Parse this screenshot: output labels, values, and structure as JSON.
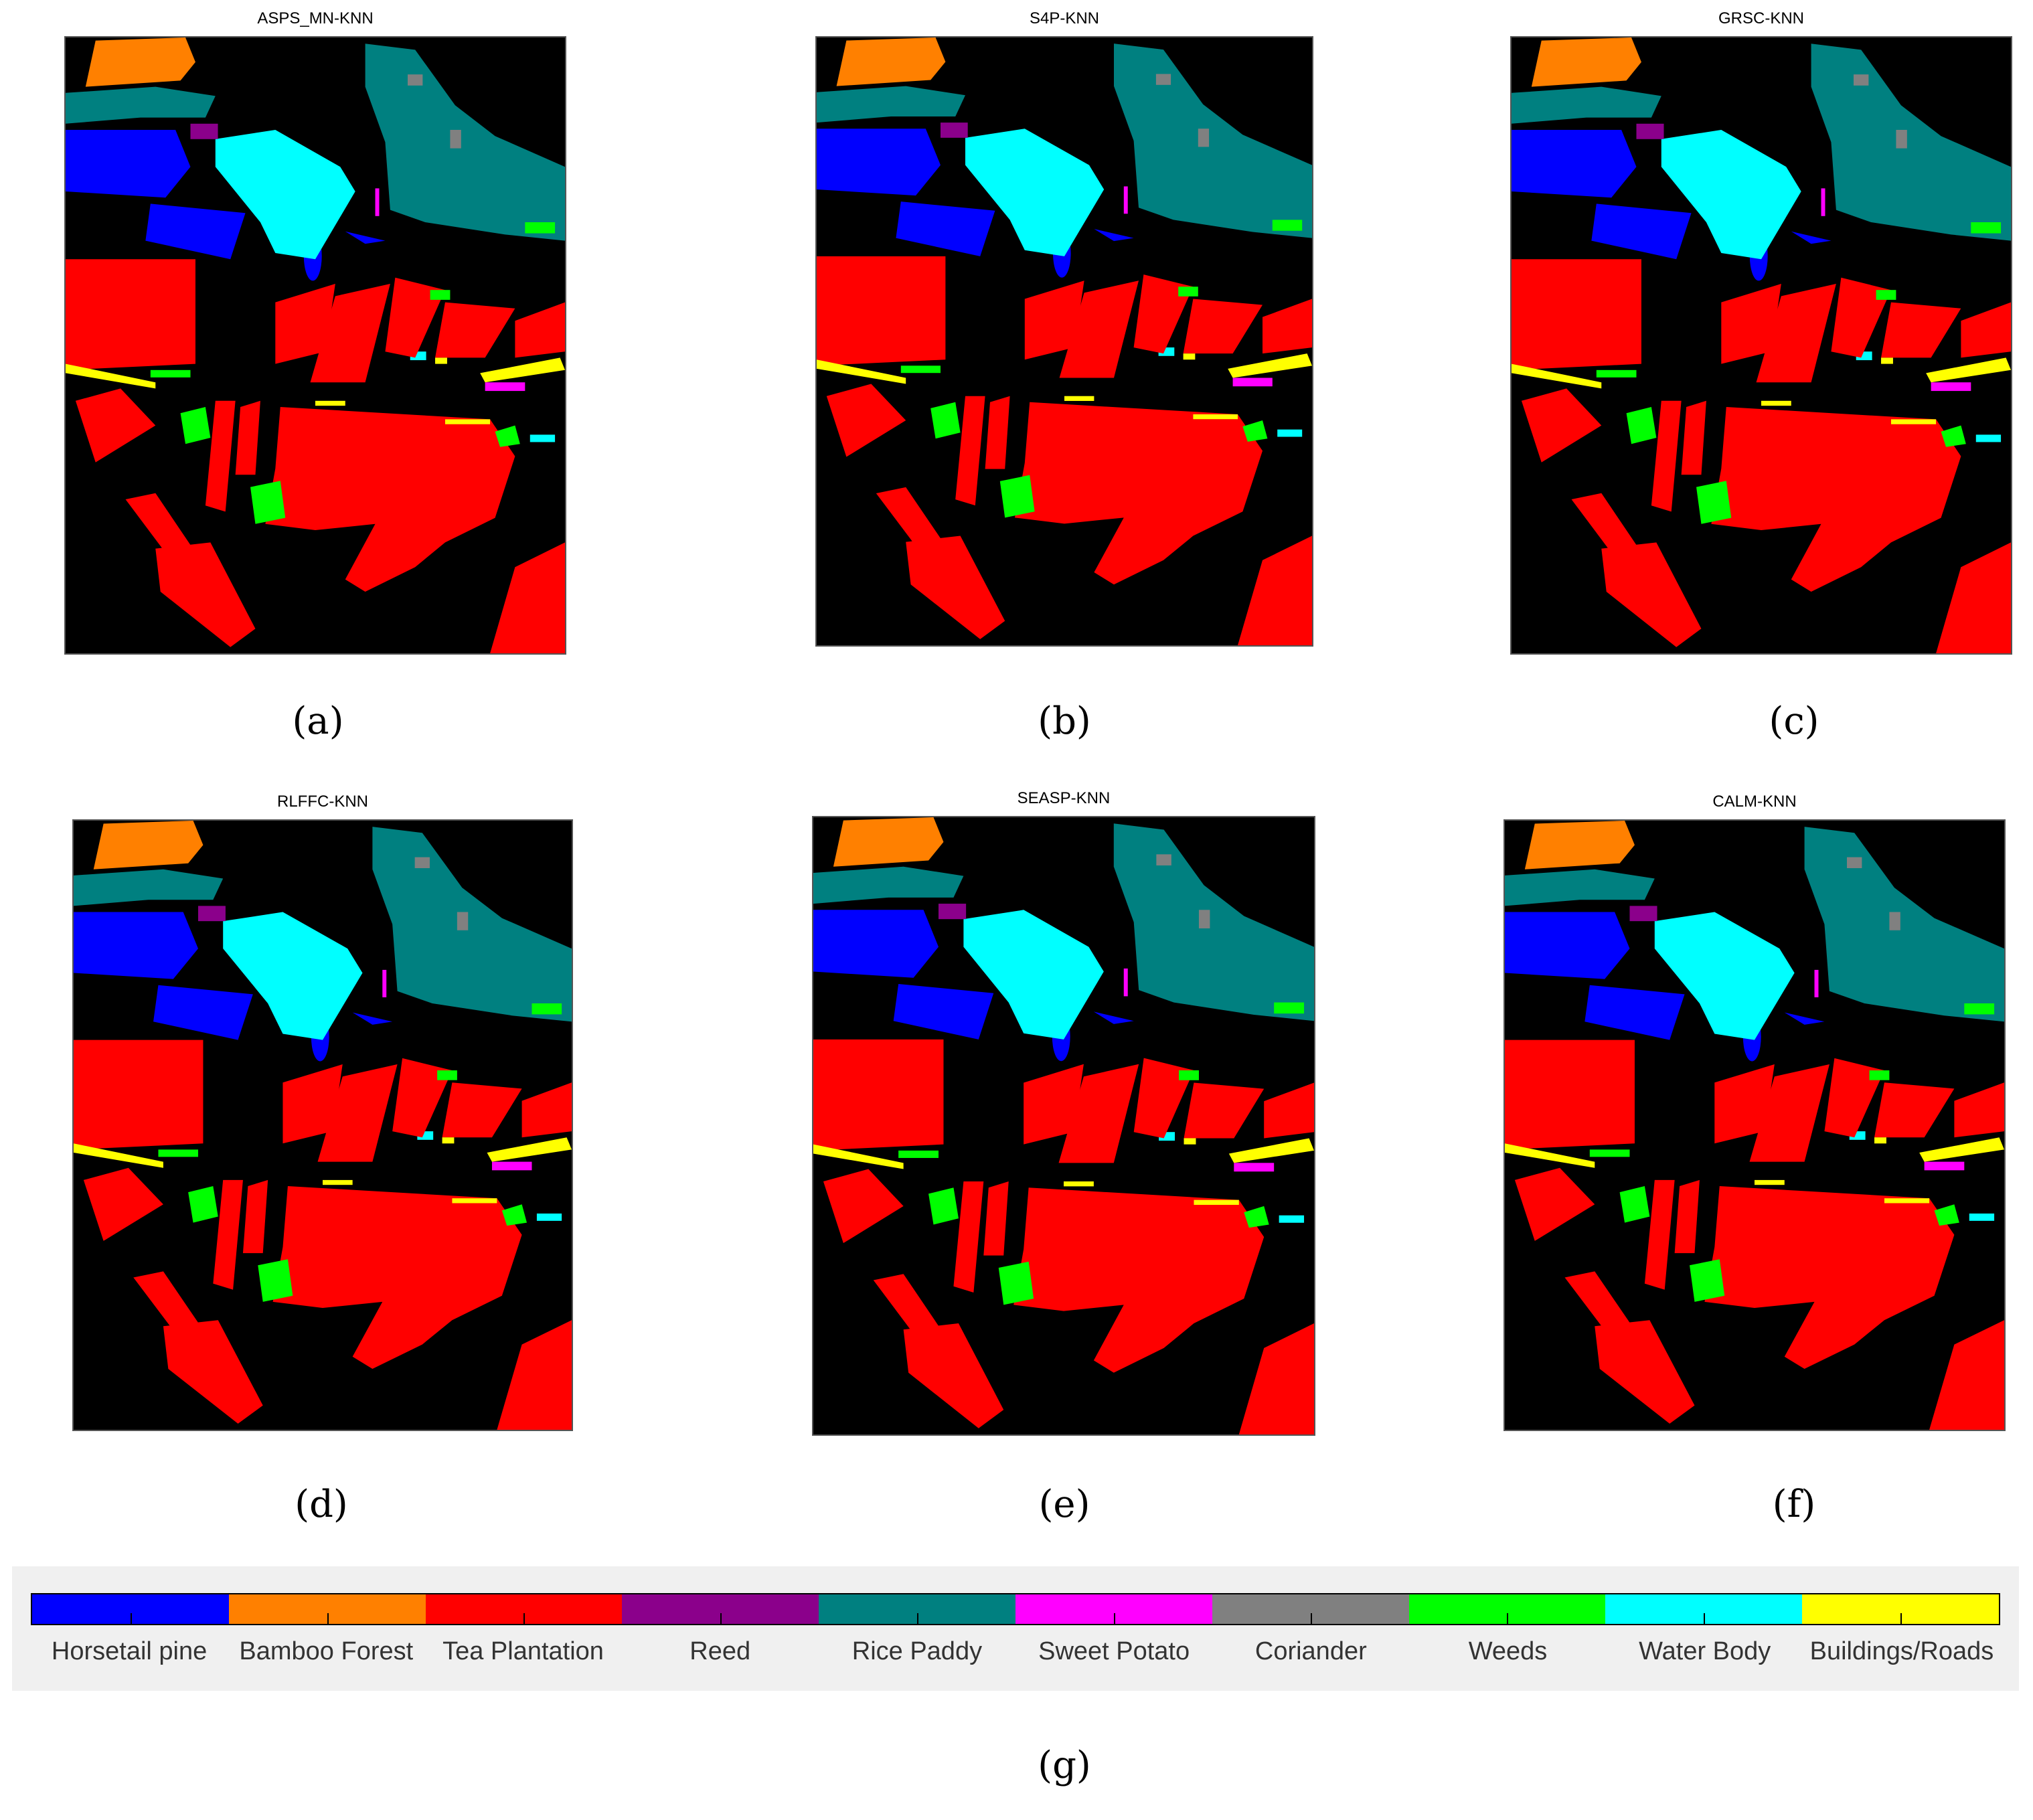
{
  "panels": [
    {
      "title": "ASPS_MN-KNN",
      "label": "(a)"
    },
    {
      "title": "S4P-KNN",
      "label": "(b)"
    },
    {
      "title": "GRSC-KNN",
      "label": "(c)"
    },
    {
      "title": "RLFFC-KNN",
      "label": "(d)"
    },
    {
      "title": "SEASP-KNN",
      "label": "(e)"
    },
    {
      "title": "CALM-KNN",
      "label": "(f)"
    }
  ],
  "legend": {
    "label": "(g)",
    "classes": [
      {
        "name": "Horsetail pine",
        "color": "#0000ff"
      },
      {
        "name": "Bamboo Forest",
        "color": "#ff8000"
      },
      {
        "name": "Tea Plantation",
        "color": "#ff0000"
      },
      {
        "name": "Reed",
        "color": "#8b008b"
      },
      {
        "name": "Rice Paddy",
        "color": "#008080"
      },
      {
        "name": "Sweet Potato",
        "color": "#ff00ff"
      },
      {
        "name": "Coriander",
        "color": "#808080"
      },
      {
        "name": "Weeds",
        "color": "#00ff00"
      },
      {
        "name": "Water Body",
        "color": "#00ffff"
      },
      {
        "name": "Buildings/Roads",
        "color": "#ffff00"
      }
    ]
  }
}
